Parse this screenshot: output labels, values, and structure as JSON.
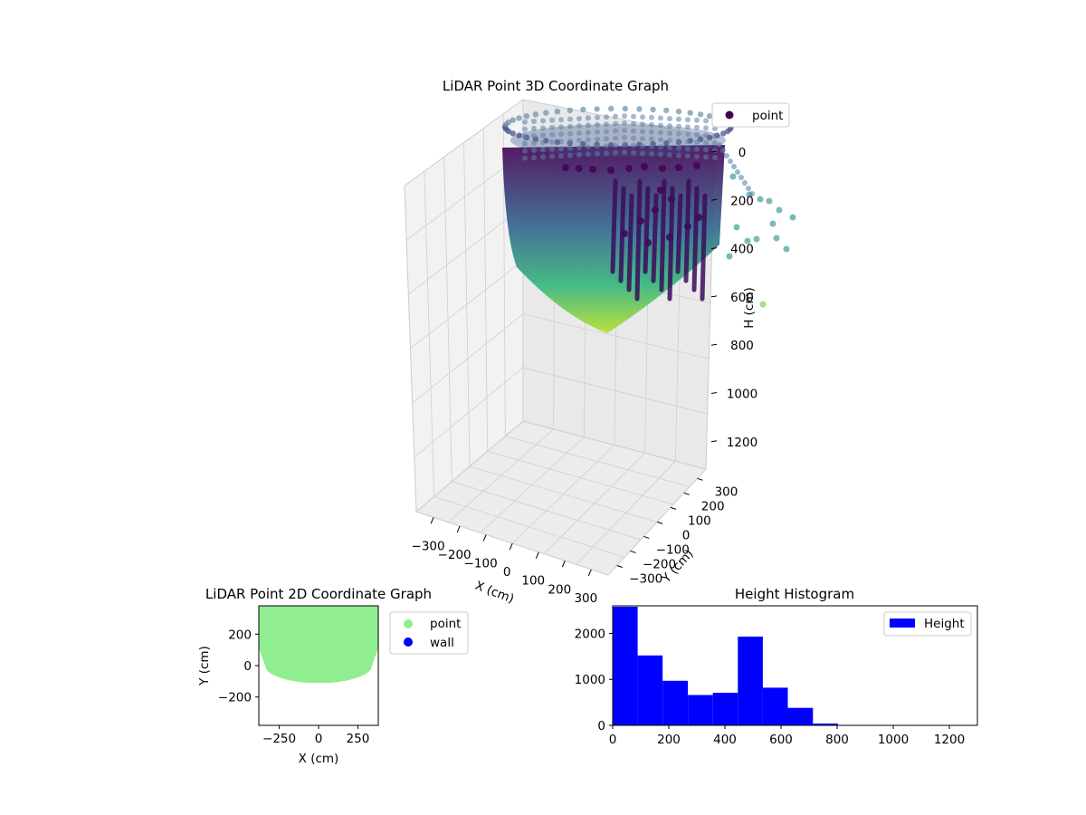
{
  "chart_data": [
    {
      "type": "scatter3d",
      "title": "LiDAR Point 3D Coordinate Graph",
      "xlabel": "X (cm)",
      "ylabel": "Y (cm)",
      "zlabel": "H (cm)",
      "legend": {
        "entries": [
          "point"
        ],
        "placement": "upper right"
      },
      "x_ticks": [
        "−300",
        "−200",
        "−100",
        "0",
        "100",
        "200",
        "300"
      ],
      "y_ticks": [
        "−300",
        "−200",
        "−100",
        "0",
        "100",
        "200",
        "300"
      ],
      "z_ticks": [
        "0",
        "200",
        "400",
        "600",
        "800",
        "1000",
        "1200"
      ],
      "xlim": [
        -350,
        350
      ],
      "ylim": [
        -350,
        350
      ],
      "zlim": [
        1300,
        0
      ],
      "colormap": "viridis",
      "grid": true
    },
    {
      "type": "scatter",
      "title": "LiDAR Point 2D Coordinate Graph",
      "xlabel": "X (cm)",
      "ylabel": "Y (cm)",
      "x_ticks": [
        "−250",
        "0",
        "250"
      ],
      "y_ticks": [
        "200",
        "0",
        "−200"
      ],
      "xlim": [
        -380,
        380
      ],
      "ylim": [
        -380,
        380
      ],
      "legend": {
        "placement": "outside upper right"
      },
      "series": [
        {
          "name": "point",
          "color": "#90ee90"
        },
        {
          "name": "wall",
          "color": "#0000ff"
        }
      ]
    },
    {
      "type": "bar",
      "title": "Height Histogram",
      "legend": {
        "entries": [
          "Height"
        ],
        "placement": "upper right"
      },
      "bar_color": "#0000ff",
      "x_ticks": [
        "0",
        "200",
        "400",
        "600",
        "800",
        "1000",
        "1200"
      ],
      "y_ticks": [
        "0",
        "1000",
        "2000"
      ],
      "xlim": [
        0,
        1300
      ],
      "ylim": [
        0,
        2600
      ],
      "bins": [
        {
          "x0": 0,
          "x1": 89,
          "count": 2580
        },
        {
          "x0": 89,
          "x1": 178,
          "count": 1520
        },
        {
          "x0": 178,
          "x1": 268,
          "count": 970
        },
        {
          "x0": 268,
          "x1": 357,
          "count": 660
        },
        {
          "x0": 357,
          "x1": 446,
          "count": 710
        },
        {
          "x0": 446,
          "x1": 535,
          "count": 1930
        },
        {
          "x0": 535,
          "x1": 624,
          "count": 820
        },
        {
          "x0": 624,
          "x1": 714,
          "count": 380
        },
        {
          "x0": 714,
          "x1": 803,
          "count": 40
        }
      ]
    }
  ]
}
